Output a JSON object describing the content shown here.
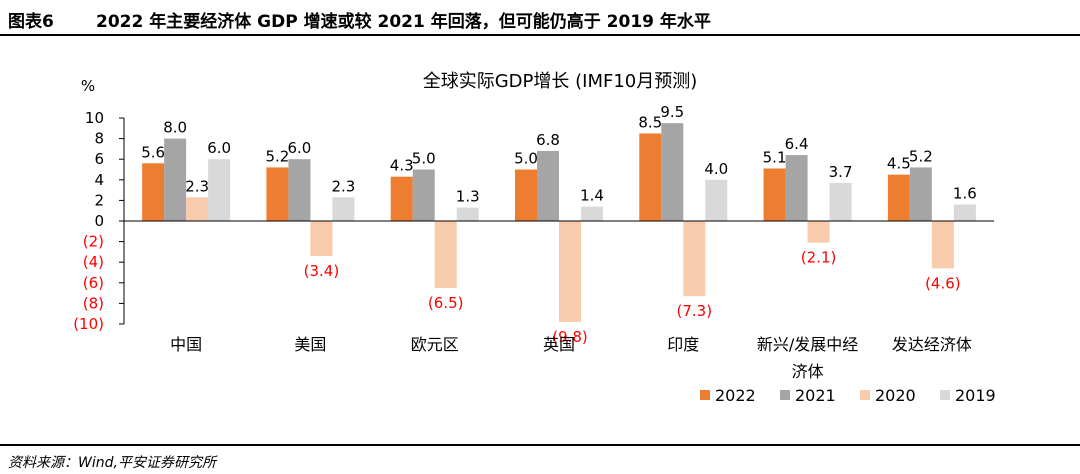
{
  "header": {
    "figure_label": "图表6",
    "figure_title": "2022 年主要经济体 GDP 增速或较 2021 年回落，但可能仍高于 2019 年水平"
  },
  "footer": {
    "source": "资料来源：Wind,平安证券研究所"
  },
  "chart_data": {
    "type": "bar",
    "title": "全球实际GDP增长 (IMF10月预测)",
    "ylabel": "%",
    "ylim": [
      -10,
      10
    ],
    "yticks": [
      10,
      8,
      6,
      4,
      2,
      0,
      -2,
      -4,
      -6,
      -8,
      -10
    ],
    "ytick_labels": [
      "10",
      "8",
      "6",
      "4",
      "2",
      "0",
      "(2)",
      "(4)",
      "(6)",
      "(8)",
      "(10)"
    ],
    "categories": [
      "中国",
      "美国",
      "欧元区",
      "英国",
      "印度",
      "新兴/发展中经济体",
      "发达经济体"
    ],
    "category_labels": [
      [
        "中国"
      ],
      [
        "美国"
      ],
      [
        "欧元区"
      ],
      [
        "英国"
      ],
      [
        "印度"
      ],
      [
        "新兴/发展中经",
        "济体"
      ],
      [
        "发达经济体"
      ]
    ],
    "series": [
      {
        "name": "2022",
        "color": "#ED7D31",
        "values": [
          5.6,
          5.2,
          4.3,
          5.0,
          8.5,
          5.1,
          4.5
        ],
        "labels": [
          "5.6",
          "5.2",
          "4.3",
          "5.0",
          "8.5",
          "5.1",
          "4.5"
        ]
      },
      {
        "name": "2021",
        "color": "#A5A5A5",
        "values": [
          8.0,
          6.0,
          5.0,
          6.8,
          9.5,
          6.4,
          5.2
        ],
        "labels": [
          "8.0",
          "6.0",
          "5.0",
          "6.8",
          "9.5",
          "6.4",
          "5.2"
        ]
      },
      {
        "name": "2020",
        "color": "#F8CBAD",
        "values": [
          2.3,
          -3.4,
          -6.5,
          -9.8,
          -7.3,
          -2.1,
          -4.6
        ],
        "labels": [
          "2.3",
          "(3.4)",
          "(6.5)",
          "(9.8)",
          "(7.3)",
          "(2.1)",
          "(4.6)"
        ]
      },
      {
        "name": "2019",
        "color": "#D9D9D9",
        "values": [
          6.0,
          2.3,
          1.3,
          1.4,
          4.0,
          3.7,
          1.6
        ],
        "labels": [
          "6.0",
          "2.3",
          "1.3",
          "1.4",
          "4.0",
          "3.7",
          "1.6"
        ]
      }
    ],
    "negative_label_color": "#FF0000",
    "legend_position": "bottom-right"
  }
}
